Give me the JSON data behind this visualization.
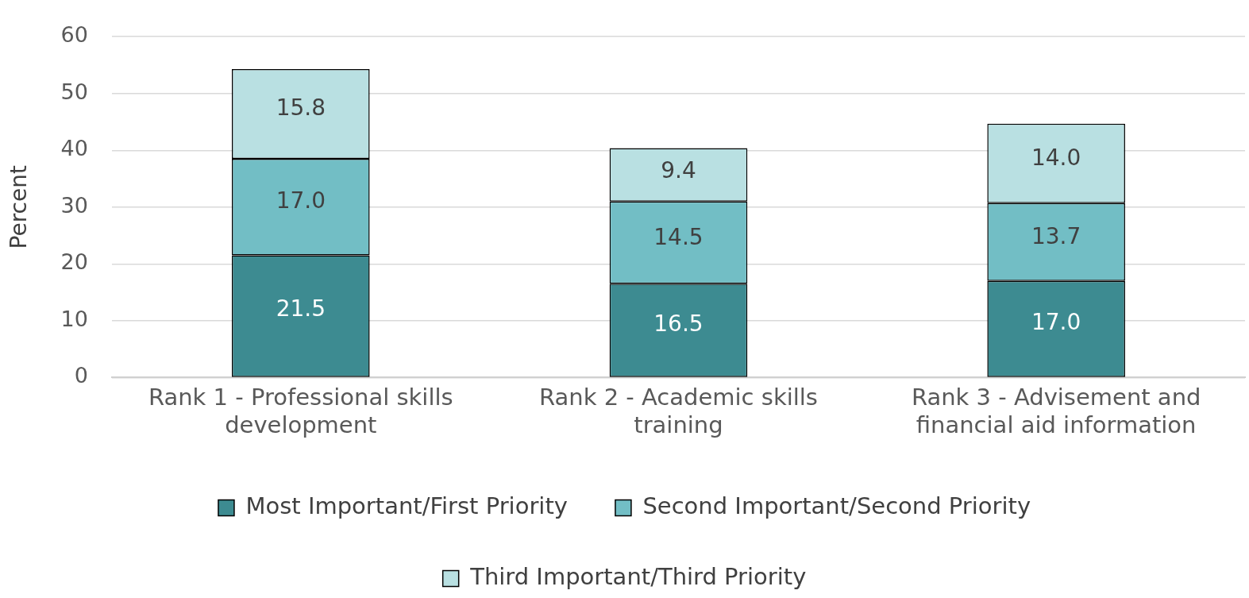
{
  "chart_data": {
    "type": "bar",
    "stacked": true,
    "ylabel": "Percent",
    "categories": [
      "Rank 1 - Professional skills development",
      "Rank 2 - Academic skills training",
      "Rank 3 - Advisement and financial aid information"
    ],
    "series": [
      {
        "name": "Most Important/First Priority",
        "color": "#3d8b91",
        "values": [
          21.5,
          16.5,
          17.0
        ],
        "value_labels": [
          "21.5",
          "16.5",
          "17.0"
        ]
      },
      {
        "name": "Second Important/Second Priority",
        "color": "#72bec5",
        "values": [
          17.0,
          14.5,
          13.7
        ],
        "value_labels": [
          "17.0",
          "14.5",
          "13.7"
        ]
      },
      {
        "name": "Third Important/Third Priority",
        "color": "#b9e0e2",
        "values": [
          15.8,
          9.4,
          14.0
        ],
        "value_labels": [
          "15.8",
          "9.4",
          "14.0"
        ]
      }
    ],
    "ylim": [
      0,
      60
    ],
    "yticks": [
      0,
      10,
      20,
      30,
      40,
      50,
      60
    ],
    "grid": "y",
    "legend": "bottom"
  }
}
